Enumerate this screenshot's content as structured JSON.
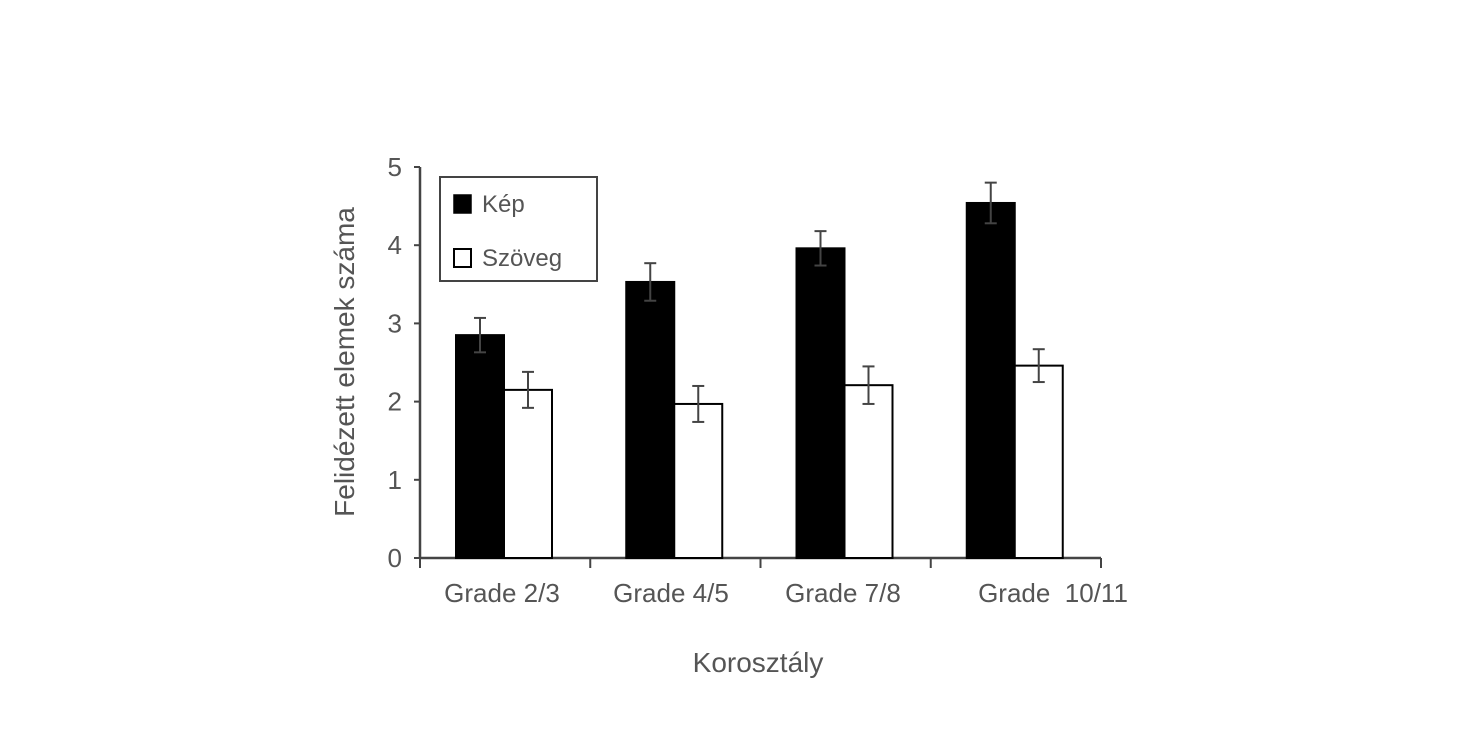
{
  "chart_data": {
    "type": "bar",
    "title": "",
    "xlabel": "Korosztály",
    "ylabel": "Felidézett elemek száma",
    "categories": [
      "Grade 2/3",
      "Grade 4/5",
      "Grade 7/8",
      "Grade  10/11"
    ],
    "series": [
      {
        "name": "Kép",
        "values": [
          2.85,
          3.53,
          3.96,
          4.54
        ],
        "errors": [
          0.22,
          0.24,
          0.22,
          0.26
        ],
        "fill": "#000000"
      },
      {
        "name": "Szöveg",
        "values": [
          2.15,
          1.97,
          2.21,
          2.46
        ],
        "errors": [
          0.23,
          0.23,
          0.24,
          0.21
        ],
        "fill": "#ffffff"
      }
    ],
    "ylim": [
      0,
      5
    ],
    "yticks": [
      0,
      1,
      2,
      3,
      4,
      5
    ],
    "grid": false,
    "legend": "top-left"
  }
}
